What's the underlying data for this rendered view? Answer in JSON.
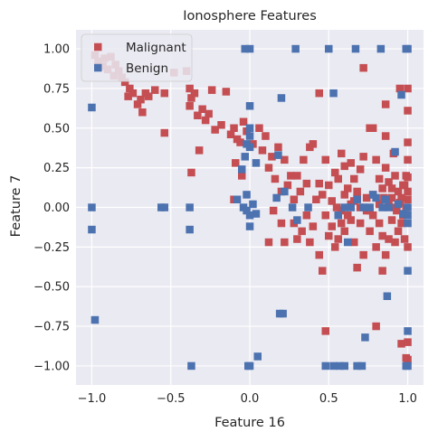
{
  "chart_data": {
    "type": "scatter",
    "title": "Ionosphere Features",
    "xlabel": "Feature 16",
    "ylabel": "Feature 7",
    "xlim": [
      -1.1,
      1.1
    ],
    "ylim": [
      -1.12,
      1.12
    ],
    "grid": true,
    "legend_position": "top-left",
    "background_color": "#eaeaf2",
    "grid_color": "#ffffff",
    "x_ticks": [
      {
        "value": -1.0,
        "label": "−1.0"
      },
      {
        "value": -0.5,
        "label": "−0.5"
      },
      {
        "value": 0.0,
        "label": "0.0"
      },
      {
        "value": 0.5,
        "label": "0.5"
      },
      {
        "value": 1.0,
        "label": "1.0"
      }
    ],
    "y_ticks": [
      {
        "value": -1.0,
        "label": "−1.00"
      },
      {
        "value": -0.75,
        "label": "−0.75"
      },
      {
        "value": -0.5,
        "label": "−0.50"
      },
      {
        "value": -0.25,
        "label": "−0.25"
      },
      {
        "value": 0.0,
        "label": "0.00"
      },
      {
        "value": 0.25,
        "label": "0.25"
      },
      {
        "value": 0.5,
        "label": "0.50"
      },
      {
        "value": 0.75,
        "label": "0.75"
      },
      {
        "value": 1.0,
        "label": "1.00"
      }
    ],
    "series": [
      {
        "name": "Malignant",
        "color": "#c44e52",
        "marker": "square",
        "points": [
          [
            -0.98,
            0.96
          ],
          [
            -0.96,
            0.92
          ],
          [
            -0.93,
            0.89
          ],
          [
            -0.92,
            0.94
          ],
          [
            -0.9,
            0.87
          ],
          [
            -0.88,
            0.95
          ],
          [
            -0.86,
            0.83
          ],
          [
            -0.85,
            0.9
          ],
          [
            -0.83,
            0.86
          ],
          [
            -0.81,
            0.82
          ],
          [
            -0.79,
            0.79
          ],
          [
            -0.77,
            0.7
          ],
          [
            -0.76,
            0.75
          ],
          [
            -0.74,
            0.72
          ],
          [
            -0.71,
            0.65
          ],
          [
            -0.69,
            0.68
          ],
          [
            -0.68,
            0.6
          ],
          [
            -0.66,
            0.72
          ],
          [
            -0.64,
            0.7
          ],
          [
            -0.6,
            0.74
          ],
          [
            -0.54,
            0.72
          ],
          [
            -0.48,
            0.85
          ],
          [
            -0.4,
            0.86
          ],
          [
            -0.38,
            0.75
          ],
          [
            -0.38,
            0.64
          ],
          [
            -0.37,
            0.69
          ],
          [
            -0.35,
            0.72
          ],
          [
            -0.33,
            0.58
          ],
          [
            -0.3,
            0.62
          ],
          [
            -0.28,
            0.55
          ],
          [
            -0.26,
            0.59
          ],
          [
            -0.24,
            0.74
          ],
          [
            -0.22,
            0.49
          ],
          [
            -0.18,
            0.52
          ],
          [
            -0.15,
            0.73
          ],
          [
            -0.12,
            0.46
          ],
          [
            -0.1,
            0.5
          ],
          [
            -0.08,
            0.43
          ],
          [
            -0.06,
            0.41
          ],
          [
            -0.04,
            0.54
          ],
          [
            -0.02,
            0.48
          ],
          [
            -0.54,
            0.47
          ],
          [
            -0.37,
            0.22
          ],
          [
            -0.32,
            0.36
          ],
          [
            -0.09,
            0.28
          ],
          [
            -0.05,
            0.2
          ],
          [
            -0.1,
            0.05
          ],
          [
            0.02,
            0.4
          ],
          [
            0.06,
            0.5
          ],
          [
            0.08,
            0.36
          ],
          [
            0.1,
            0.45
          ],
          [
            0.12,
            0.25
          ],
          [
            0.14,
            0.32
          ],
          [
            0.16,
            0.18
          ],
          [
            0.18,
            0.38
          ],
          [
            0.2,
            0.1
          ],
          [
            0.22,
            0.3
          ],
          [
            0.24,
            0.14
          ],
          [
            0.26,
            0.2
          ],
          [
            0.28,
            0.05
          ],
          [
            0.3,
            0.2
          ],
          [
            0.32,
            0.1
          ],
          [
            0.34,
            0.3
          ],
          [
            0.36,
            0.15
          ],
          [
            0.38,
            0.38
          ],
          [
            0.4,
            0.4
          ],
          [
            0.42,
            0.05
          ],
          [
            0.44,
            0.15
          ],
          [
            0.46,
            0.08
          ],
          [
            0.48,
            0.3
          ],
          [
            0.5,
            0.14
          ],
          [
            0.52,
            0.04
          ],
          [
            0.54,
            0.22
          ],
          [
            0.56,
            0.18
          ],
          [
            0.58,
            0.34
          ],
          [
            0.6,
            0.26
          ],
          [
            0.62,
            0.12
          ],
          [
            0.64,
            0.28
          ],
          [
            0.66,
            0.18
          ],
          [
            0.68,
            0.1
          ],
          [
            0.7,
            0.24
          ],
          [
            0.72,
            0.32
          ],
          [
            0.74,
            0.06
          ],
          [
            0.76,
            0.5
          ],
          [
            0.78,
            0.5
          ],
          [
            0.8,
            0.3
          ],
          [
            0.82,
            0.18
          ],
          [
            0.84,
            0.12
          ],
          [
            0.86,
            0.25
          ],
          [
            0.88,
            0.16
          ],
          [
            0.9,
            0.12
          ],
          [
            0.92,
            0.2
          ],
          [
            0.94,
            0.1
          ],
          [
            0.96,
            0.06
          ],
          [
            0.98,
            0.14
          ],
          [
            1.0,
            0.41
          ],
          [
            1.0,
            0.3
          ],
          [
            1.0,
            0.19
          ],
          [
            1.0,
            0.1
          ],
          [
            1.0,
            0.05
          ],
          [
            1.0,
            0.61
          ],
          [
            1.0,
            0.75
          ],
          [
            0.95,
            0.75
          ],
          [
            0.86,
            0.65
          ],
          [
            0.72,
            0.88
          ],
          [
            0.44,
            0.72
          ],
          [
            0.86,
            0.45
          ],
          [
            0.91,
            0.34
          ],
          [
            0.97,
            0.14
          ],
          [
            0.99,
            0.2
          ],
          [
            0.12,
            -0.22
          ],
          [
            0.15,
            -0.02
          ],
          [
            0.2,
            -0.1
          ],
          [
            0.22,
            -0.22
          ],
          [
            0.28,
            -0.1
          ],
          [
            0.3,
            -0.2
          ],
          [
            0.33,
            -0.15
          ],
          [
            0.36,
            -0.05
          ],
          [
            0.38,
            -0.22
          ],
          [
            0.4,
            -0.12
          ],
          [
            0.44,
            -0.3
          ],
          [
            0.46,
            -0.4
          ],
          [
            0.48,
            -0.05
          ],
          [
            0.5,
            -0.18
          ],
          [
            0.52,
            -0.12
          ],
          [
            0.54,
            -0.25
          ],
          [
            0.56,
            -0.2
          ],
          [
            0.58,
            -0.1
          ],
          [
            0.6,
            -0.15
          ],
          [
            0.62,
            -0.05
          ],
          [
            0.64,
            -0.08
          ],
          [
            0.66,
            -0.22
          ],
          [
            0.68,
            -0.38
          ],
          [
            0.7,
            -0.1
          ],
          [
            0.72,
            -0.3
          ],
          [
            0.74,
            -0.02
          ],
          [
            0.76,
            -0.15
          ],
          [
            0.78,
            -0.05
          ],
          [
            0.8,
            -0.25
          ],
          [
            0.82,
            -0.1
          ],
          [
            0.84,
            -0.18
          ],
          [
            0.86,
            -0.3
          ],
          [
            0.88,
            -0.2
          ],
          [
            0.9,
            -0.08
          ],
          [
            0.92,
            -0.22
          ],
          [
            0.94,
            -0.15
          ],
          [
            0.96,
            -0.1
          ],
          [
            0.98,
            -0.2
          ],
          [
            1.0,
            -0.25
          ],
          [
            0.97,
            -0.05
          ],
          [
            0.93,
            -0.02
          ],
          [
            0.84,
            -0.4
          ],
          [
            0.8,
            -0.75
          ],
          [
            0.48,
            -0.78
          ],
          [
            0.96,
            -0.86
          ],
          [
            1.0,
            -0.96
          ],
          [
            1.0,
            -0.85
          ],
          [
            0.99,
            -0.95
          ],
          [
            0.64,
            0.02
          ],
          [
            0.55,
            0.0
          ],
          [
            0.58,
            -0.02
          ],
          [
            0.66,
            0.04
          ],
          [
            0.7,
            0.0
          ],
          [
            0.76,
            -0.02
          ],
          [
            0.82,
            0.02
          ],
          [
            0.88,
            0.04
          ],
          [
            0.92,
            0.0
          ],
          [
            0.95,
            0.03
          ],
          [
            0.6,
            0.08
          ],
          [
            0.68,
            0.06
          ],
          [
            0.78,
            0.08
          ],
          [
            0.85,
            0.06
          ],
          [
            0.9,
            0.06
          ],
          [
            0.99,
            0.0
          ]
        ]
      },
      {
        "name": "Benign",
        "color": "#4c72b0",
        "marker": "square",
        "points": [
          [
            -1.0,
            0.63
          ],
          [
            -1.0,
            0.0
          ],
          [
            -1.0,
            -0.14
          ],
          [
            -0.98,
            -0.71
          ],
          [
            -0.56,
            0.0
          ],
          [
            -0.54,
            0.0
          ],
          [
            -0.38,
            0.0
          ],
          [
            -0.38,
            -0.14
          ],
          [
            -0.37,
            -1.0
          ],
          [
            -0.03,
            1.0
          ],
          [
            0.0,
            1.0
          ],
          [
            0.29,
            1.0
          ],
          [
            0.5,
            1.0
          ],
          [
            0.67,
            1.0
          ],
          [
            0.83,
            1.0
          ],
          [
            0.99,
            1.0
          ],
          [
            1.0,
            1.0
          ],
          [
            0.0,
            0.64
          ],
          [
            0.0,
            0.5
          ],
          [
            0.0,
            0.45
          ],
          [
            -0.02,
            0.4
          ],
          [
            0.0,
            0.38
          ],
          [
            -0.05,
            0.24
          ],
          [
            0.04,
            0.28
          ],
          [
            -0.03,
            0.32
          ],
          [
            -0.08,
            0.05
          ],
          [
            -0.04,
            0.0
          ],
          [
            -0.02,
            -0.02
          ],
          [
            0.0,
            -0.05
          ],
          [
            0.02,
            0.02
          ],
          [
            0.04,
            -0.04
          ],
          [
            0.0,
            -0.12
          ],
          [
            -0.02,
            0.08
          ],
          [
            0.17,
            0.06
          ],
          [
            0.22,
            0.1
          ],
          [
            0.27,
            0.0
          ],
          [
            0.3,
            -0.08
          ],
          [
            0.37,
            0.0
          ],
          [
            0.2,
            0.69
          ],
          [
            0.18,
            0.33
          ],
          [
            0.53,
            0.72
          ],
          [
            0.56,
            -0.05
          ],
          [
            0.6,
            0.0
          ],
          [
            0.64,
            0.0
          ],
          [
            0.68,
            0.05
          ],
          [
            0.72,
            0.0
          ],
          [
            0.76,
            0.0
          ],
          [
            0.78,
            0.08
          ],
          [
            0.8,
            0.06
          ],
          [
            0.84,
            0.0
          ],
          [
            0.88,
            0.0
          ],
          [
            0.92,
            0.35
          ],
          [
            0.96,
            0.71
          ],
          [
            1.0,
            0.0
          ],
          [
            1.0,
            -0.05
          ],
          [
            1.0,
            -0.1
          ],
          [
            0.97,
            -0.04
          ],
          [
            0.94,
            0.02
          ],
          [
            0.62,
            -0.22
          ],
          [
            0.86,
            0.05
          ],
          [
            1.0,
            -0.4
          ],
          [
            0.87,
            -0.56
          ],
          [
            0.73,
            -0.82
          ],
          [
            0.19,
            -0.67
          ],
          [
            0.21,
            -0.67
          ],
          [
            0.05,
            -0.94
          ],
          [
            0.0,
            -1.0
          ],
          [
            -0.01,
            -1.0
          ],
          [
            0.48,
            -1.0
          ],
          [
            0.53,
            -1.0
          ],
          [
            0.57,
            -1.0
          ],
          [
            0.6,
            -1.0
          ],
          [
            0.68,
            -1.0
          ],
          [
            0.71,
            -1.0
          ],
          [
            0.99,
            -1.0
          ],
          [
            1.0,
            -1.0
          ],
          [
            1.0,
            -0.78
          ]
        ]
      }
    ]
  }
}
